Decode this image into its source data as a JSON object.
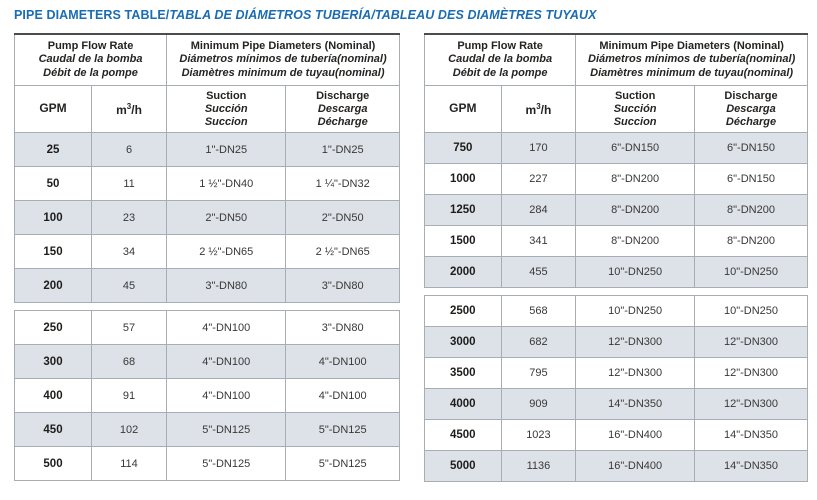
{
  "page_title": {
    "main": "PIPE DIAMETERS TABLE/",
    "italic": "TABLA DE DIÁMETROS TUBERÍA/TABLEAU DES DIAMÈTRES TUYAUX"
  },
  "colors": {
    "title_blue": "#1a6cb3",
    "row_shade": "#dce2e8",
    "border_gray": "#a8adb3",
    "border_dark": "#4a4c4e"
  },
  "header": {
    "flow_group": [
      "Pump Flow Rate",
      "Caudal de la bomba",
      "Débit de la pompe"
    ],
    "diameter_group": [
      "Minimum Pipe Diameters (Nominal)",
      "Diámetros mínimos de tubería(nominal)",
      "Diamètres minimum de tuyau(nominal)"
    ],
    "col_gpm": "GPM",
    "col_m3h": [
      "m",
      "3",
      "/h"
    ],
    "col_suction": [
      "Suction",
      "Succión",
      "Succion"
    ],
    "col_discharge": [
      "Discharge",
      "Descarga",
      "Décharge"
    ]
  },
  "tables": [
    {
      "side": "left",
      "sections": [
        {
          "rows": [
            [
              "25",
              "6",
              "1\"-DN25",
              "1\"-DN25"
            ],
            [
              "50",
              "11",
              "1 ½\"-DN40",
              "1 ¼\"-DN32"
            ],
            [
              "100",
              "23",
              "2\"-DN50",
              "2\"-DN50"
            ],
            [
              "150",
              "34",
              "2 ½\"-DN65",
              "2 ½\"-DN65"
            ],
            [
              "200",
              "45",
              "3\"-DN80",
              "3\"-DN80"
            ]
          ]
        },
        {
          "rows": [
            [
              "250",
              "57",
              "4\"-DN100",
              "3\"-DN80"
            ],
            [
              "300",
              "68",
              "4\"-DN100",
              "4\"-DN100"
            ],
            [
              "400",
              "91",
              "4\"-DN100",
              "4\"-DN100"
            ],
            [
              "450",
              "102",
              "5\"-DN125",
              "5\"-DN125"
            ],
            [
              "500",
              "114",
              "5\"-DN125",
              "5\"-DN125"
            ]
          ]
        }
      ]
    },
    {
      "side": "right",
      "sections": [
        {
          "rows": [
            [
              "750",
              "170",
              "6\"-DN150",
              "6\"-DN150"
            ],
            [
              "1000",
              "227",
              "8\"-DN200",
              "6\"-DN150"
            ],
            [
              "1250",
              "284",
              "8\"-DN200",
              "8\"-DN200"
            ],
            [
              "1500",
              "341",
              "8\"-DN200",
              "8\"-DN200"
            ],
            [
              "2000",
              "455",
              "10\"-DN250",
              "10\"-DN250"
            ]
          ]
        },
        {
          "rows": [
            [
              "2500",
              "568",
              "10\"-DN250",
              "10\"-DN250"
            ],
            [
              "3000",
              "682",
              "12\"-DN300",
              "12\"-DN300"
            ],
            [
              "3500",
              "795",
              "12\"-DN300",
              "12\"-DN300"
            ],
            [
              "4000",
              "909",
              "14\"-DN350",
              "12\"-DN300"
            ],
            [
              "4500",
              "1023",
              "16\"-DN400",
              "14\"-DN350"
            ],
            [
              "5000",
              "1136",
              "16\"-DN400",
              "14\"-DN350"
            ]
          ]
        }
      ]
    }
  ]
}
